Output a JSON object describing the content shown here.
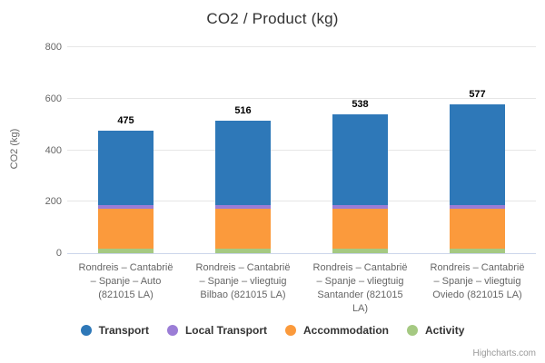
{
  "chart_data": {
    "type": "bar",
    "stacked": true,
    "title": "CO2 / Product (kg)",
    "ylabel": "CO2 (kg)",
    "ylim": [
      0,
      800
    ],
    "yticks": [
      0,
      200,
      400,
      600,
      800
    ],
    "grid": true,
    "legend_position": "bottom",
    "categories": [
      "Rondreis – Cantabrië – Spanje – Auto (821015 LA)",
      "Rondreis – Cantabrië – Spanje – vliegtuig Bilbao (821015 LA)",
      "Rondreis – Cantabrië – Spanje – vliegtuig Santander (821015 LA)",
      "Rondreis – Cantabrië – Spanje – vliegtuig Oviedo (821015 LA)"
    ],
    "category_label_lines": [
      "Rondreis – Cantabrië\n– Spanje – Auto\n(821015 LA)",
      "Rondreis – Cantabrië\n– Spanje – vliegtuig\nBilbao (821015 LA)",
      "Rondreis – Cantabrië\n– Spanje – vliegtuig\nSantander (821015\nLA)",
      "Rondreis – Cantabrië\n– Spanje – vliegtuig\nOviedo (821015 LA)"
    ],
    "series": [
      {
        "name": "Transport",
        "color": "#2e78b8",
        "values": [
          287,
          328,
          350,
          389
        ]
      },
      {
        "name": "Local Transport",
        "color": "#9b7dd6",
        "values": [
          14,
          14,
          14,
          14
        ]
      },
      {
        "name": "Accommodation",
        "color": "#fb9a3c",
        "values": [
          158,
          158,
          158,
          158
        ]
      },
      {
        "name": "Activity",
        "color": "#a5c982",
        "values": [
          16,
          16,
          16,
          16
        ]
      }
    ],
    "stack_totals": [
      475,
      516,
      538,
      577
    ],
    "credit": "Highcharts.com",
    "colors": {
      "grid": "#e6e6e6",
      "axis_line": "#ccd6eb",
      "tick_label": "#666666",
      "title": "#333333",
      "data_label": "#000000",
      "legend_label": "#333333",
      "credit": "#999999",
      "background": "#ffffff"
    }
  }
}
